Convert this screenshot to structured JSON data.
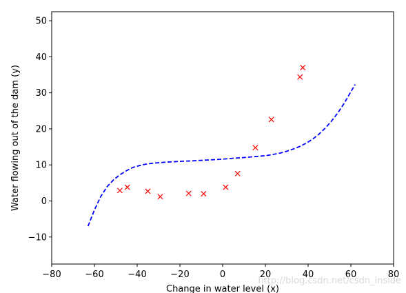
{
  "chart_data": {
    "type": "scatter",
    "title": "",
    "xlabel": "Change in water level (x)",
    "ylabel": "Water flowing out of the dam (y)",
    "xlim": [
      -80,
      80
    ],
    "ylim": [
      -17.5,
      52.5
    ],
    "xticks": [
      -80,
      -60,
      -40,
      -20,
      0,
      20,
      40,
      60,
      80
    ],
    "yticks": [
      -10,
      0,
      10,
      20,
      30,
      40,
      50
    ],
    "grid": false,
    "legend": "none",
    "series": [
      {
        "type": "scatter",
        "marker": "x",
        "color": "#ff0000",
        "x": [
          -48.1,
          -44.6,
          -35.0,
          -29.2,
          -15.9,
          -8.9,
          1.4,
          7.0,
          15.3,
          22.8,
          36.2,
          37.5
        ],
        "y": [
          2.9,
          3.8,
          2.7,
          1.2,
          2.1,
          2.0,
          3.8,
          7.6,
          14.8,
          22.6,
          34.4,
          37.0
        ]
      },
      {
        "type": "line",
        "style": "dashed",
        "color": "#0000ff",
        "x": [
          -63,
          -60,
          -57,
          -54,
          -51,
          -48,
          -45,
          -42,
          -39,
          -36,
          -33,
          -30,
          -27,
          -24,
          -21,
          -18,
          -15,
          -12,
          -9,
          -6,
          -3,
          0,
          3,
          6,
          9,
          12,
          15,
          18,
          21,
          24,
          27,
          30,
          33,
          36,
          39,
          42,
          45,
          48,
          51,
          54,
          57,
          60,
          62
        ],
        "y": [
          -7.0,
          -2.5,
          1.3,
          4.0,
          5.9,
          7.3,
          8.4,
          9.3,
          9.8,
          10.2,
          10.45,
          10.6,
          10.75,
          10.85,
          10.95,
          11.05,
          11.1,
          11.2,
          11.3,
          11.4,
          11.5,
          11.6,
          11.75,
          11.9,
          12.0,
          12.15,
          12.3,
          12.45,
          12.65,
          12.95,
          13.3,
          13.8,
          14.4,
          15.1,
          16.0,
          17.1,
          18.5,
          20.2,
          22.2,
          24.5,
          27.2,
          30.3,
          32.3
        ]
      }
    ]
  },
  "watermark": "http://blog.csdn.net/csdn_inside"
}
